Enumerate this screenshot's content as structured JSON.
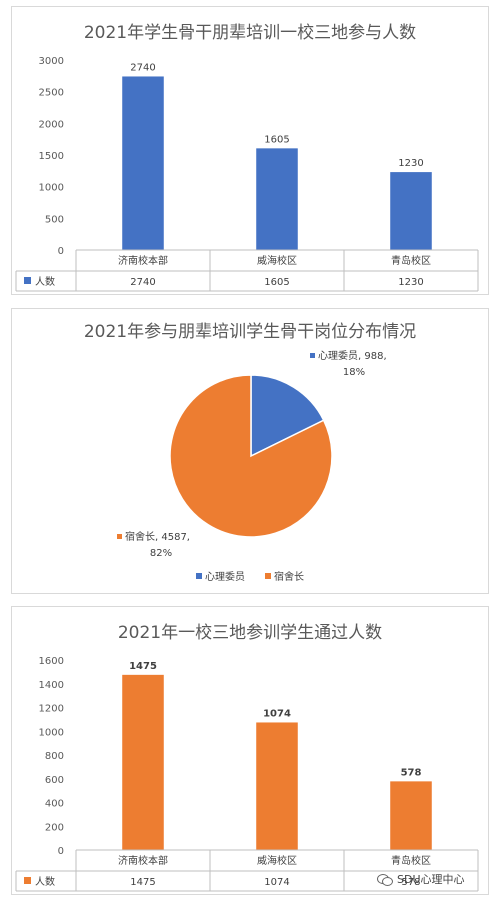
{
  "chart_data": [
    {
      "type": "bar",
      "title": "2021年学生骨干朋辈培训一校三地参与人数",
      "categories": [
        "济南校本部",
        "威海校区",
        "青岛校区"
      ],
      "series": [
        {
          "name": "人数",
          "values": [
            2740,
            1605,
            1230
          ]
        }
      ],
      "ylim": [
        0,
        3000
      ],
      "yticks": [
        0,
        500,
        1000,
        1500,
        2000,
        2500,
        3000
      ],
      "color": "#4472c4",
      "data_table": true
    },
    {
      "type": "pie",
      "title": "2021年参与朋辈培训学生骨干岗位分布情况",
      "slices": [
        {
          "name": "心理委员",
          "value": 988,
          "percent": "18%",
          "color": "#4472c4",
          "label_line1": "心理委员, 988,",
          "label_line2": "18%"
        },
        {
          "name": "宿舍长",
          "value": 4587,
          "percent": "82%",
          "color": "#ed7d31",
          "label_line1": "宿舍长, 4587,",
          "label_line2": "82%"
        }
      ],
      "legend_position": "bottom"
    },
    {
      "type": "bar",
      "title": "2021年一校三地参训学生通过人数",
      "categories": [
        "济南校本部",
        "威海校区",
        "青岛校区"
      ],
      "series": [
        {
          "name": "人数",
          "values": [
            1475,
            1074,
            578
          ]
        }
      ],
      "ylim": [
        0,
        1600
      ],
      "yticks": [
        0,
        200,
        400,
        600,
        800,
        1000,
        1200,
        1400,
        1600
      ],
      "color": "#ed7d31",
      "data_table": true,
      "bold_data_labels": true
    }
  ],
  "watermark": {
    "text": "SDU心理中心",
    "icon": "wechat-icon"
  }
}
